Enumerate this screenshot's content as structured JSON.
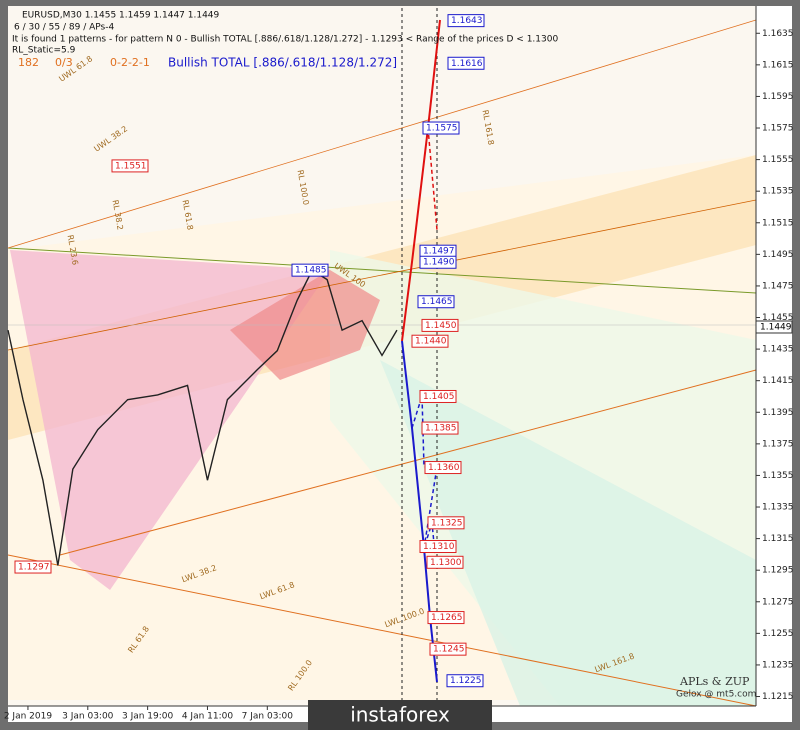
{
  "chart_data": {
    "type": "line",
    "header": [
      "EURUSD,M30  1.1455 1.1459 1.1447 1.1449",
      "6 / 30 / 55 / 89 / APs-4",
      "It is found 1 patterns  -  for pattern N 0 - Bullish TOTAL [.886/.618/1.128/1.272] - 1.1293 < Range of the prices D < 1.1300",
      "RL_Static=5.9"
    ],
    "status": [
      "182",
      "0/3",
      "0-2-2-1",
      "Bullish TOTAL [.886/.618/1.128/1.272]"
    ],
    "watermark": [
      "APLs & ZUP",
      "Gelox @ mt5.com"
    ],
    "banner": "instaforex",
    "xlim": [
      0,
      150
    ],
    "xticks": [
      {
        "value": 4,
        "label": "2 Jan 2019"
      },
      {
        "value": 16,
        "label": "3 Jan 03:00"
      },
      {
        "value": 28,
        "label": "3 Jan 19:00"
      },
      {
        "value": 40,
        "label": "4 Jan 11:00"
      },
      {
        "value": 52,
        "label": "7 Jan 03:00"
      }
    ],
    "ylim": [
      1.1209,
      1.1651
    ],
    "yticks": [
      1.1635,
      1.1615,
      1.1595,
      1.1575,
      1.1555,
      1.1535,
      1.1515,
      1.1495,
      1.1475,
      1.1455,
      1.1435,
      1.1415,
      1.1395,
      1.1375,
      1.1355,
      1.1335,
      1.1315,
      1.1295,
      1.1275,
      1.1255,
      1.1235,
      1.1215
    ],
    "last_price": 1.1449,
    "series": [
      {
        "name": "EURUSD",
        "color": "#222222",
        "x": [
          0,
          3,
          7,
          10,
          13,
          18,
          24,
          30,
          36,
          40,
          44,
          50,
          54,
          58,
          61,
          64,
          67,
          71,
          75,
          78
        ],
        "values": [
          1.1447,
          1.1403,
          1.1352,
          1.1298,
          1.1359,
          1.1384,
          1.1403,
          1.1406,
          1.1412,
          1.1352,
          1.1403,
          1.1422,
          1.1434,
          1.1466,
          1.1485,
          1.1479,
          1.1447,
          1.1453,
          1.1431,
          1.1447
        ]
      }
    ],
    "price_labels": [
      {
        "value": 1.1643,
        "color": "#1a1acc"
      },
      {
        "value": 1.1616,
        "color": "#1a1acc"
      },
      {
        "value": 1.1575,
        "color": "#1a1acc"
      },
      {
        "value": 1.1497,
        "color": "#1a1acc"
      },
      {
        "value": 1.149,
        "label": "1.1490",
        "color": "#1a1acc"
      },
      {
        "value": 1.1465,
        "color": "#1a1acc"
      },
      {
        "value": 1.1485,
        "color": "#1a1acc"
      },
      {
        "value": 1.1551,
        "color": "#dd2222"
      },
      {
        "value": 1.145,
        "label": "1.1450",
        "color": "#dd2222"
      },
      {
        "value": 1.144,
        "label": "1.1440",
        "color": "#dd2222"
      },
      {
        "value": 1.1405,
        "color": "#dd2222"
      },
      {
        "value": 1.1385,
        "color": "#dd2222"
      },
      {
        "value": 1.136,
        "label": "1.1360",
        "color": "#dd2222"
      },
      {
        "value": 1.1325,
        "color": "#dd2222"
      },
      {
        "value": 1.131,
        "label": "1.1310",
        "color": "#dd2222"
      },
      {
        "value": 1.13,
        "label": "1.1300",
        "color": "#dd2222"
      },
      {
        "value": 1.1265,
        "color": "#dd2222"
      },
      {
        "value": 1.1245,
        "color": "#dd2222"
      },
      {
        "value": 1.1225,
        "color": "#1a1acc"
      },
      {
        "value": 1.1297,
        "color": "#dd2222"
      }
    ],
    "annotations": [
      "UWL 61.8",
      "UWL 38.2",
      "RL 161.8",
      "RL 100.0",
      "RL 61.8",
      "RL 38.2",
      "RL 23.6",
      "UWL 100",
      "LWL 38.2",
      "LWL 61.8",
      "LWL 100.0",
      "LWL 161.8",
      "RL 61.8",
      "RL 100.0"
    ]
  }
}
